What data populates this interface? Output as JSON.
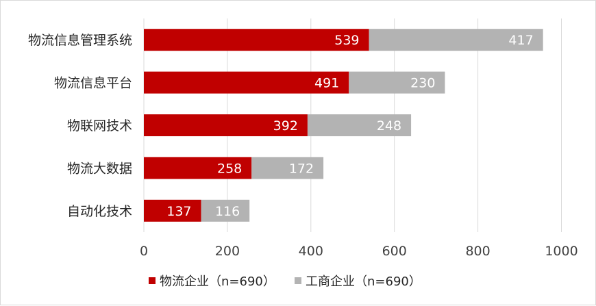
{
  "chart_data": {
    "type": "bar",
    "orientation": "horizontal",
    "stacked": true,
    "title": "",
    "xlabel": "",
    "ylabel": "",
    "categories": [
      "物流信息管理系统",
      "物流信息平台",
      "物联网技术",
      "物流大数据",
      "自动化技术"
    ],
    "series": [
      {
        "name": "物流企业（n=690）",
        "color": "#c00000",
        "values": [
          539,
          491,
          392,
          258,
          137
        ]
      },
      {
        "name": "工商企业（n=690）",
        "color": "#b3b3b3",
        "values": [
          417,
          230,
          248,
          172,
          116
        ]
      }
    ],
    "xlim": [
      0,
      1000
    ],
    "xticks": [
      "0",
      "200",
      "400",
      "600",
      "800",
      "1000"
    ],
    "grid": "vertical",
    "legend": "bottom"
  }
}
